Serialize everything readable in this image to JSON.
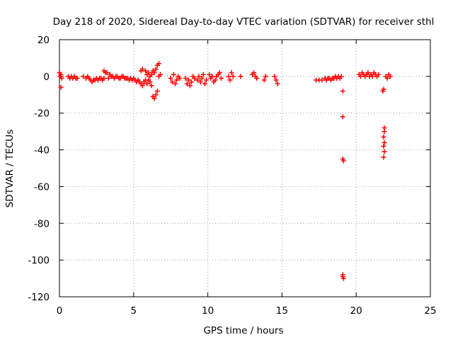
{
  "chart_data": {
    "type": "scatter",
    "title": "Day 218 of 2020, Sidereal Day-to-day VTEC variation (SDTVAR) for receiver sthl",
    "xlabel": "GPS time / hours",
    "ylabel": "SDTVAR / TECUs",
    "xlim": [
      0,
      25
    ],
    "ylim": [
      -120,
      20
    ],
    "xticks": [
      0,
      5,
      10,
      15,
      20,
      25
    ],
    "yticks": [
      20,
      0,
      -20,
      -40,
      -60,
      -80,
      -100,
      -120
    ],
    "grid": true,
    "legend": "none",
    "marker": "plus",
    "series": [
      {
        "name": "SDTVAR",
        "color": "#ff0000",
        "points": [
          [
            0.0,
            2
          ],
          [
            0.05,
            0
          ],
          [
            0.1,
            -6
          ],
          [
            0.1,
            1
          ],
          [
            0.15,
            -1
          ],
          [
            0.6,
            0
          ],
          [
            0.7,
            -1
          ],
          [
            0.8,
            0
          ],
          [
            0.9,
            -1
          ],
          [
            1.0,
            0
          ],
          [
            1.1,
            -1
          ],
          [
            1.2,
            -1
          ],
          [
            1.6,
            0
          ],
          [
            1.8,
            -1
          ],
          [
            1.9,
            0
          ],
          [
            2.0,
            -1
          ],
          [
            2.1,
            -2
          ],
          [
            2.2,
            -3
          ],
          [
            2.3,
            -2
          ],
          [
            2.4,
            -2
          ],
          [
            2.5,
            -1
          ],
          [
            2.6,
            -2
          ],
          [
            2.7,
            -1
          ],
          [
            2.8,
            -1
          ],
          [
            2.9,
            -2
          ],
          [
            3.0,
            3
          ],
          [
            3.0,
            -1
          ],
          [
            3.1,
            2
          ],
          [
            3.2,
            2
          ],
          [
            3.3,
            -1
          ],
          [
            3.4,
            1
          ],
          [
            3.5,
            0
          ],
          [
            3.6,
            0
          ],
          [
            3.7,
            -1
          ],
          [
            3.8,
            0
          ],
          [
            3.9,
            0
          ],
          [
            4.0,
            -1
          ],
          [
            4.1,
            -1
          ],
          [
            4.2,
            0
          ],
          [
            4.3,
            0
          ],
          [
            4.4,
            -1
          ],
          [
            4.5,
            -1
          ],
          [
            4.6,
            -1
          ],
          [
            4.7,
            -2
          ],
          [
            4.8,
            -1
          ],
          [
            4.9,
            -2
          ],
          [
            5.0,
            -1
          ],
          [
            5.1,
            -2
          ],
          [
            5.2,
            -3
          ],
          [
            5.3,
            -2
          ],
          [
            5.4,
            -3
          ],
          [
            5.5,
            -4
          ],
          [
            5.5,
            3
          ],
          [
            5.6,
            4
          ],
          [
            5.6,
            -5
          ],
          [
            5.7,
            -3
          ],
          [
            5.8,
            -2
          ],
          [
            5.8,
            3
          ],
          [
            5.9,
            1
          ],
          [
            5.9,
            -4
          ],
          [
            6.0,
            -2
          ],
          [
            6.0,
            2
          ],
          [
            6.1,
            0
          ],
          [
            6.1,
            -3
          ],
          [
            6.2,
            1
          ],
          [
            6.2,
            -5
          ],
          [
            6.3,
            -11
          ],
          [
            6.3,
            3
          ],
          [
            6.4,
            -12
          ],
          [
            6.4,
            2
          ],
          [
            6.5,
            -10
          ],
          [
            6.5,
            4
          ],
          [
            6.6,
            6
          ],
          [
            6.6,
            -8
          ],
          [
            6.7,
            7
          ],
          [
            6.7,
            0
          ],
          [
            6.8,
            1
          ],
          [
            7.5,
            -1
          ],
          [
            7.6,
            -3
          ],
          [
            7.7,
            1
          ],
          [
            7.8,
            -4
          ],
          [
            7.9,
            -2
          ],
          [
            8.0,
            0
          ],
          [
            8.1,
            -1
          ],
          [
            8.5,
            -1
          ],
          [
            8.6,
            -4
          ],
          [
            8.7,
            -2
          ],
          [
            8.8,
            -5
          ],
          [
            8.9,
            -3
          ],
          [
            9.0,
            0
          ],
          [
            9.1,
            -1
          ],
          [
            9.3,
            -2
          ],
          [
            9.4,
            0
          ],
          [
            9.5,
            -3
          ],
          [
            9.6,
            -1
          ],
          [
            9.7,
            1
          ],
          [
            9.8,
            -4
          ],
          [
            9.9,
            -2
          ],
          [
            10.1,
            1
          ],
          [
            10.2,
            -1
          ],
          [
            10.3,
            0
          ],
          [
            10.4,
            -3
          ],
          [
            10.5,
            -2
          ],
          [
            10.6,
            0
          ],
          [
            10.7,
            1
          ],
          [
            10.8,
            2
          ],
          [
            10.9,
            -1
          ],
          [
            11.4,
            0
          ],
          [
            11.5,
            -2
          ],
          [
            11.6,
            2
          ],
          [
            11.7,
            0
          ],
          [
            12.2,
            0
          ],
          [
            13.0,
            1
          ],
          [
            13.1,
            2
          ],
          [
            13.2,
            0
          ],
          [
            13.3,
            -1
          ],
          [
            13.8,
            -2
          ],
          [
            13.9,
            0
          ],
          [
            14.5,
            0
          ],
          [
            14.6,
            -2
          ],
          [
            14.7,
            -4
          ],
          [
            17.3,
            -2
          ],
          [
            17.5,
            -2
          ],
          [
            17.7,
            -2
          ],
          [
            17.9,
            -1
          ],
          [
            18.0,
            -2
          ],
          [
            18.1,
            -1
          ],
          [
            18.2,
            -1
          ],
          [
            18.3,
            -2
          ],
          [
            18.4,
            -1
          ],
          [
            18.5,
            -1
          ],
          [
            18.6,
            0
          ],
          [
            18.7,
            -1
          ],
          [
            18.8,
            0
          ],
          [
            18.9,
            -1
          ],
          [
            19.0,
            0
          ],
          [
            19.1,
            -8
          ],
          [
            19.1,
            -22
          ],
          [
            19.1,
            -45
          ],
          [
            19.15,
            -46
          ],
          [
            19.1,
            -108
          ],
          [
            19.15,
            -110
          ],
          [
            19.1,
            -109
          ],
          [
            20.2,
            1
          ],
          [
            20.3,
            0
          ],
          [
            20.4,
            2
          ],
          [
            20.5,
            1
          ],
          [
            20.6,
            0
          ],
          [
            20.7,
            1
          ],
          [
            20.8,
            2
          ],
          [
            20.9,
            0
          ],
          [
            21.0,
            1
          ],
          [
            21.1,
            0
          ],
          [
            21.2,
            2
          ],
          [
            21.3,
            1
          ],
          [
            21.4,
            0
          ],
          [
            21.5,
            1
          ],
          [
            21.8,
            -8
          ],
          [
            21.85,
            -7
          ],
          [
            21.9,
            -28
          ],
          [
            21.9,
            -30
          ],
          [
            21.85,
            -33
          ],
          [
            21.9,
            -36
          ],
          [
            21.85,
            -38
          ],
          [
            21.9,
            -41
          ],
          [
            21.85,
            -44
          ],
          [
            22.0,
            0
          ],
          [
            22.1,
            -1
          ],
          [
            22.2,
            1
          ],
          [
            22.3,
            0
          ]
        ]
      }
    ]
  }
}
